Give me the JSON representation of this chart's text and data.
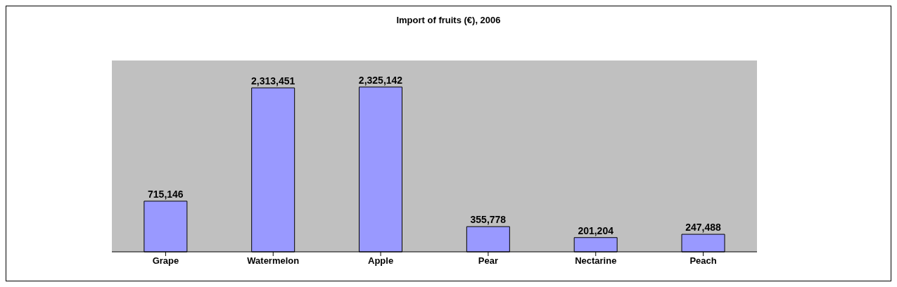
{
  "chart_data": {
    "type": "bar",
    "title": "Import of fruits (€), 2006",
    "categories": [
      "Grape",
      "Watermelon",
      "Apple",
      "Pear",
      "Nectarine",
      "Peach"
    ],
    "values": [
      715146,
      2313451,
      2325142,
      355778,
      201204,
      247488
    ],
    "value_labels": [
      "715,146",
      "2,313,451",
      "2,325,142",
      "355,778",
      "201,204",
      "247,488"
    ],
    "color": "#9999ff"
  }
}
